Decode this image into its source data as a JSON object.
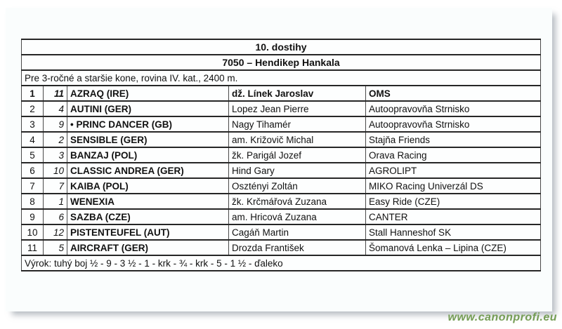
{
  "race": {
    "title": "10. dostihy",
    "subtitle": "7050 – Hendikep Hankala",
    "conditions": "Pre 3-ročné a staršie kone, rovina IV. kat., 2400 m.",
    "verdict": "Výrok: tuhý boj ½ - 9 - 3 ½ - 1 - krk - ¾ - krk - 5 - 1 ½ - ďaleko"
  },
  "results": [
    {
      "place": "1",
      "number": "11",
      "horse": "AZRAQ (IRE)",
      "jockey": "dž. Línek Jaroslav",
      "stable": "OMS",
      "bold": true
    },
    {
      "place": "2",
      "number": "4",
      "horse": "AUTINI (GER)",
      "jockey": "Lopez Jean Pierre",
      "stable": "Autoopravovňa Strnisko",
      "bold": false
    },
    {
      "place": "3",
      "number": "9",
      "horse": "• PRINC DANCER (GB)",
      "jockey": "Nagy Tihamér",
      "stable": "Autoopravovňa Strnisko",
      "bold": false
    },
    {
      "place": "4",
      "number": "2",
      "horse": "SENSIBLE (GER)",
      "jockey": "am. Križovič Michal",
      "stable": "Stajňa Friends",
      "bold": false
    },
    {
      "place": "5",
      "number": "3",
      "horse": "BANZAJ (POL)",
      "jockey": "žk. Parigál Jozef",
      "stable": "Orava Racing",
      "bold": false
    },
    {
      "place": "6",
      "number": "10",
      "horse": "CLASSIC ANDREA (GER)",
      "jockey": "Hind Gary",
      "stable": "AGROLIPT",
      "bold": false
    },
    {
      "place": "7",
      "number": "7",
      "horse": "KAIBA (POL)",
      "jockey": "Osztényi Zoltán",
      "stable": "MIKO Racing Univerzál DS",
      "bold": false
    },
    {
      "place": "8",
      "number": "1",
      "horse": "WENEXIA",
      "jockey": "žk. Krčmářová Zuzana",
      "stable": "Easy Ride (CZE)",
      "bold": false
    },
    {
      "place": "9",
      "number": "6",
      "horse": "SAZBA (CZE)",
      "jockey": "am. Hricová Zuzana",
      "stable": "CANTER",
      "bold": false
    },
    {
      "place": "10",
      "number": "12",
      "horse": "PISTENTEUFEL (AUT)",
      "jockey": "Cagáň Martin",
      "stable": "Stall Hanneshof SK",
      "bold": false
    },
    {
      "place": "11",
      "number": "5",
      "horse": "AIRCRAFT (GER)",
      "jockey": "Drozda František",
      "stable": "Šomanová Lenka – Lipina (CZE)",
      "bold": false
    }
  ],
  "watermark": {
    "text": "www.canonprofi.eu",
    "color": "#749c54"
  },
  "colors": {
    "page_background": "#fafdfd",
    "border_horizontal": "#262626",
    "border_vertical": "#4a4a4a",
    "watermark_green": "#749c54"
  }
}
